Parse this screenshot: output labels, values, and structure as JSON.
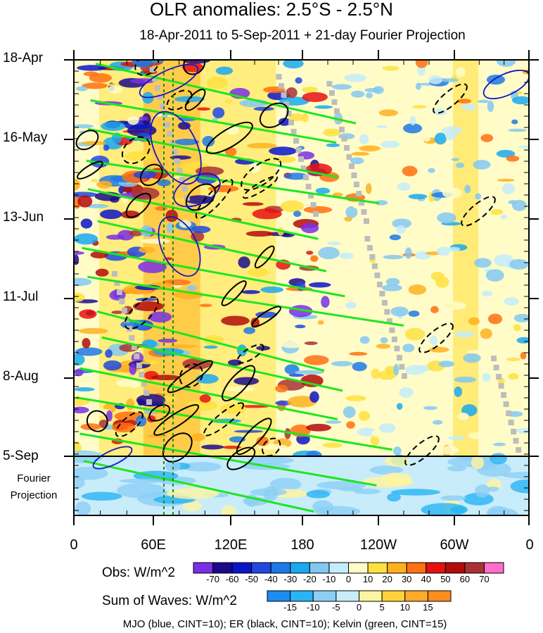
{
  "chart_data": {
    "type": "heatmap",
    "title": "OLR anomalies: 2.5°S - 2.5°N",
    "subtitle": "18-Apr-2011 to 5-Sep-2011 + 21-day Fourier Projection",
    "y_ticks": [
      "18-Apr",
      "16-May",
      "13-Jun",
      "11-Jul",
      "8-Aug",
      "5-Sep"
    ],
    "y_extra_label": [
      "Fourier",
      "Projection"
    ],
    "x_ticks": [
      "0",
      "60E",
      "120E",
      "180",
      "120W",
      "60W",
      "0"
    ],
    "x_range_deg": [
      0,
      360
    ],
    "time_range": [
      "18-Apr-2011",
      "5-Sep-2011"
    ],
    "projection_days": 21,
    "obs_colorbar": {
      "label": "Obs: W/m^2",
      "levels": [
        "-70",
        "-60",
        "-50",
        "-40",
        "-30",
        "-20",
        "-10",
        "0",
        "10",
        "20",
        "30",
        "40",
        "50",
        "60",
        "70"
      ],
      "colors": [
        "#7a2ee6",
        "#1a0a8c",
        "#0a14c8",
        "#2048e0",
        "#1e78e6",
        "#1aa8f0",
        "#82c8f2",
        "#c4ecfa",
        "#fffcc8",
        "#ffe040",
        "#ffb020",
        "#ff7010",
        "#e61010",
        "#b40a0a",
        "#a83232",
        "#ff6ec8"
      ]
    },
    "waves_colorbar": {
      "label": "Sum of Waves: W/m^2",
      "levels": [
        "-15",
        "-10",
        "-5",
        "0",
        "5",
        "10",
        "15"
      ],
      "colors": [
        "#1e8cf0",
        "#28b4f5",
        "#8ccff5",
        "#c8ecfa",
        "#fff5a0",
        "#ffd23c",
        "#ffaa28",
        "#ff8c1e"
      ]
    },
    "overlays": {
      "mjo": {
        "color": "#1414c8",
        "cint": 10
      },
      "er": {
        "color": "#000000",
        "cint": 10
      },
      "kelvin": {
        "color": "#1ee61e",
        "cint": 15
      }
    },
    "footer": "MJO (blue, CINT=10); ER (black, CINT=10); Kelvin (green, CINT=15)"
  }
}
